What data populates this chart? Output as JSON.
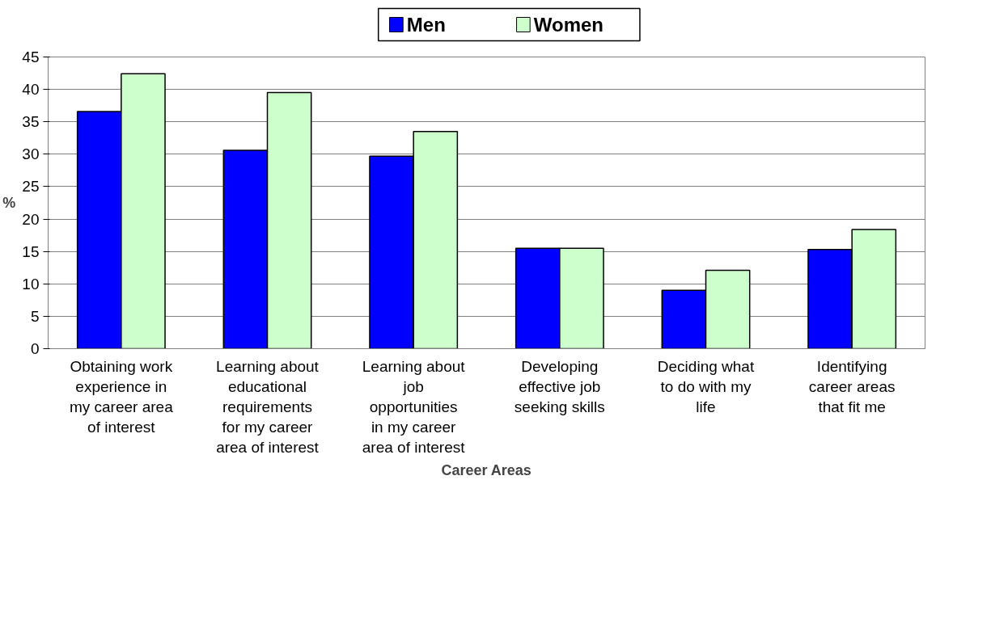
{
  "chart_data": {
    "type": "bar",
    "xlabel": "Career Areas",
    "ylabel": "%",
    "categories": [
      "Obtaining work\nexperience in\nmy career area\nof interest",
      "Learning about\neducational\nrequirements\nfor my career\narea of interest",
      "Learning about\njob\nopportunities\nin my career\narea of interest",
      "Developing\neffective job\nseeking skills",
      "Deciding what\nto do with my\nlife",
      "Identifying\ncareer areas\nthat fit me"
    ],
    "series": [
      {
        "name": "Men",
        "color": "#0000ff",
        "values": [
          36.6,
          30.6,
          29.7,
          15.5,
          9.0,
          15.3
        ]
      },
      {
        "name": "Women",
        "color": "#ccffcc",
        "values": [
          42.4,
          39.5,
          33.5,
          15.5,
          12.1,
          18.4
        ]
      }
    ],
    "ylim": [
      0,
      45
    ],
    "yticks": [
      0,
      5,
      10,
      15,
      20,
      25,
      30,
      35,
      40,
      45
    ],
    "grid": "y",
    "legend": "top"
  }
}
